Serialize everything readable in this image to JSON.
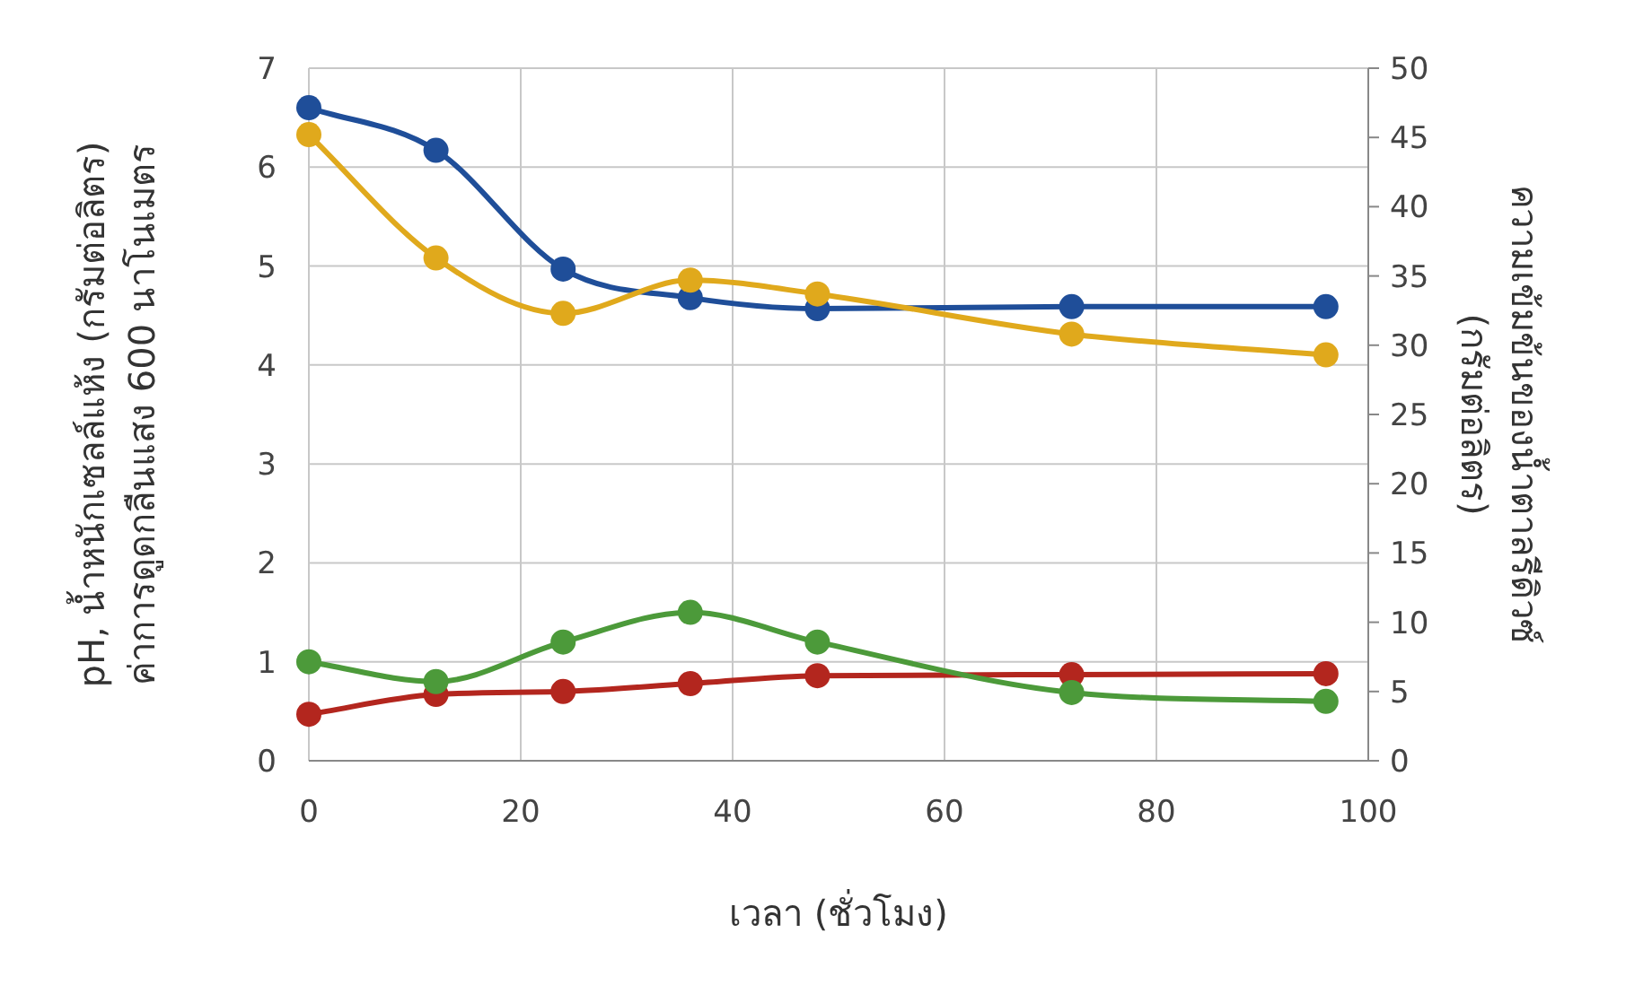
{
  "chart_data": {
    "type": "line",
    "xlabel": "เวลา (ชั่วโมง)",
    "ylabel": "pH, น้ำหนักเซลล์แห้ง (กรัมต่อลิตร)\nค่าการดูดกลืนแสง 600 นาโนเมตร",
    "y2label": "ความเข้มข้นของน้ำตาลรีดิวซ์\n(กรัมต่อลิตร)",
    "x": [
      0,
      12,
      24,
      36,
      48,
      72,
      96
    ],
    "xlim": [
      0,
      100
    ],
    "xticks": [
      0,
      20,
      40,
      60,
      80,
      100
    ],
    "ylim": [
      0,
      7
    ],
    "yticks": [
      0,
      1,
      2,
      3,
      4,
      5,
      6,
      7
    ],
    "y2lim": [
      0,
      50
    ],
    "y2ticks": [
      0,
      5,
      10,
      15,
      20,
      25,
      30,
      35,
      40,
      45,
      50
    ],
    "grid": true,
    "marker": "circle",
    "line_style": "solid",
    "series": [
      {
        "color": "#1f4e99",
        "values": [
          6.6,
          6.17,
          4.97,
          4.68,
          4.57,
          4.59,
          4.59
        ]
      },
      {
        "color": "#e0a91c",
        "axis": "y2",
        "values": [
          45.2,
          36.3,
          32.3,
          34.7,
          33.7,
          30.8,
          29.3
        ]
      },
      {
        "color": "#b3261e",
        "values": [
          0.47,
          0.67,
          0.7,
          0.78,
          0.86,
          0.87,
          0.88
        ]
      },
      {
        "color": "#4c9a3a",
        "values": [
          1.0,
          0.8,
          1.2,
          1.5,
          1.2,
          0.69,
          0.6
        ]
      }
    ]
  }
}
